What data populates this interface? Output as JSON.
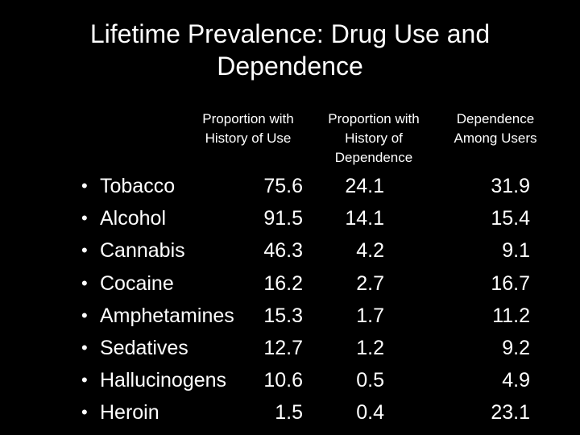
{
  "title": {
    "line1": "Lifetime Prevalence: Drug Use and",
    "line2": "Dependence"
  },
  "headers": {
    "use": [
      "Proportion with",
      "History of Use"
    ],
    "dependence": [
      "Proportion with",
      "History of",
      "Dependence"
    ],
    "among_users": [
      "Dependence",
      "Among Users"
    ]
  },
  "bullet": "•",
  "rows": [
    {
      "drug": "Tobacco",
      "use": "75.6",
      "dependence": "24.1",
      "among_users": "31.9"
    },
    {
      "drug": "Alcohol",
      "use": "91.5",
      "dependence": "14.1",
      "among_users": "15.4"
    },
    {
      "drug": "Cannabis",
      "use": "46.3",
      "dependence": "4.2",
      "among_users": "9.1"
    },
    {
      "drug": "Cocaine",
      "use": "16.2",
      "dependence": "2.7",
      "among_users": "16.7"
    },
    {
      "drug": "Amphetamines",
      "use": "15.3",
      "dependence": "1.7",
      "among_users": "11.2"
    },
    {
      "drug": "Sedatives",
      "use": "12.7",
      "dependence": "1.2",
      "among_users": "9.2"
    },
    {
      "drug": "Hallucinogens",
      "use": "10.6",
      "dependence": "0.5",
      "among_users": "4.9"
    },
    {
      "drug": "Heroin",
      "use": "1.5",
      "dependence": "0.4",
      "among_users": "23.1"
    }
  ]
}
